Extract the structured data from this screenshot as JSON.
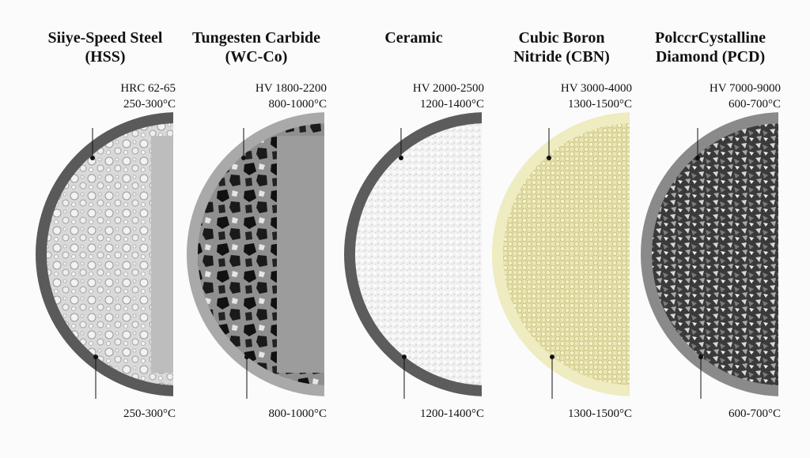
{
  "materials": [
    {
      "name": [
        "Siiye-Speed Steel",
        "(HSS)"
      ],
      "hardness": "HRC 62-65",
      "temperature": "250-300°C",
      "bottom_temperature": "250-300°C"
    },
    {
      "name": [
        "Tungesten Carbide",
        "(WC-Co)"
      ],
      "hardness": "HV 1800-2200",
      "temperature": "800-1000°C",
      "bottom_temperature": "800-1000°C"
    },
    {
      "name": [
        "Ceramic"
      ],
      "hardness": "HV 2000-2500",
      "temperature": "1200-1400°C",
      "bottom_temperature": "1200-1400°C"
    },
    {
      "name": [
        "Cubic Boron",
        "Nitride (CBN)"
      ],
      "hardness": "HV 3000-4000",
      "temperature": "1300-1500°C",
      "bottom_temperature": "1300-1500°C"
    },
    {
      "name": [
        "PolccrCystalline",
        "Diamond (PCD)"
      ],
      "hardness": "HV 7000-9000",
      "temperature": "600-700°C",
      "bottom_temperature": "600-700°C"
    }
  ]
}
